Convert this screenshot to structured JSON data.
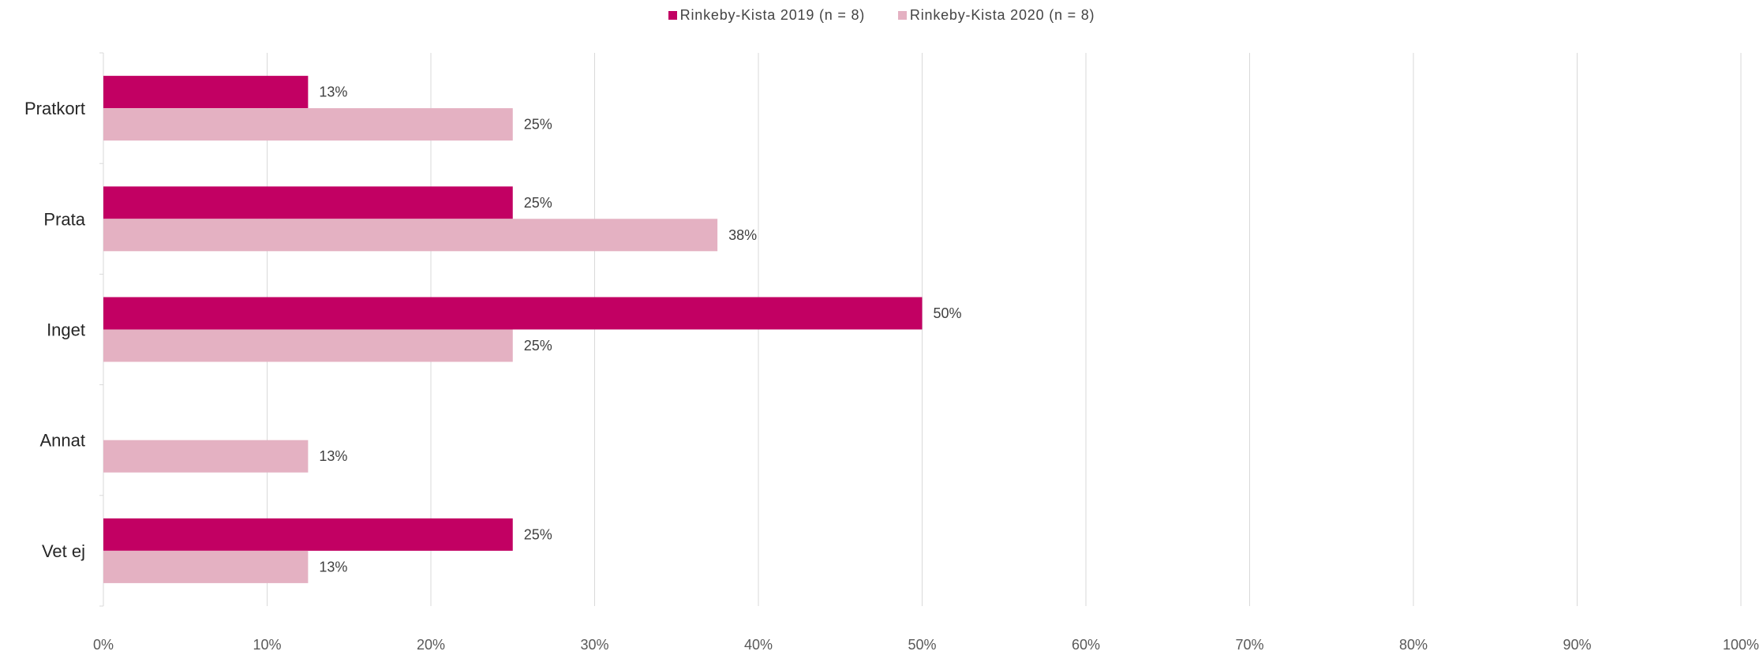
{
  "chart_data": {
    "type": "bar",
    "orientation": "horizontal",
    "categories": [
      "Pratkort",
      "Prata",
      "Inget",
      "Annat",
      "Vet ej"
    ],
    "series": [
      {
        "name": "Rinkeby-Kista 2019 (n = 8)",
        "color": "#C20063",
        "values": [
          12.5,
          25,
          50,
          null,
          25
        ],
        "labels": [
          "13%",
          "25%",
          "50%",
          "",
          "25%"
        ]
      },
      {
        "name": "Rinkeby-Kista 2020 (n = 8)",
        "color": "#E4B1C2",
        "values": [
          25,
          37.5,
          25,
          12.5,
          12.5
        ],
        "labels": [
          "25%",
          "38%",
          "25%",
          "13%",
          "13%"
        ]
      }
    ],
    "xlim": [
      0,
      100
    ],
    "xticks": [
      "0%",
      "10%",
      "20%",
      "30%",
      "40%",
      "50%",
      "60%",
      "70%",
      "80%",
      "90%",
      "100%"
    ],
    "grid": true,
    "legend_position": "top-center",
    "title": "",
    "xlabel": "",
    "ylabel": ""
  }
}
